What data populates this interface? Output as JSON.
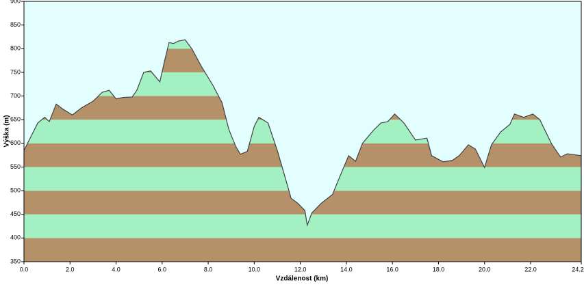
{
  "chart_data": {
    "type": "area",
    "xlabel": "Vzdálenost  (km)",
    "ylabel": "Výška (m)",
    "x": [
      0,
      0.3,
      0.6,
      0.9,
      1.1,
      1.4,
      1.7,
      2.1,
      2.5,
      3.0,
      3.4,
      3.7,
      4.0,
      4.3,
      4.7,
      4.9,
      5.2,
      5.5,
      5.9,
      6.1,
      6.3,
      6.5,
      6.7,
      7.0,
      7.3,
      7.7,
      8.2,
      8.6,
      8.9,
      9.2,
      9.4,
      9.7,
      10.0,
      10.2,
      10.6,
      11.0,
      11.3,
      11.6,
      11.9,
      12.2,
      12.3,
      12.5,
      12.9,
      13.4,
      13.7,
      14.1,
      14.4,
      14.7,
      15.2,
      15.5,
      15.8,
      16.1,
      16.5,
      17.0,
      17.5,
      17.7,
      18.2,
      18.6,
      18.9,
      19.3,
      19.6,
      20.0,
      20.3,
      20.7,
      21.1,
      21.3,
      21.7,
      22.1,
      22.4,
      22.9,
      23.3,
      23.6,
      24.2
    ],
    "values": [
      585,
      614,
      643,
      655,
      646,
      683,
      672,
      660,
      675,
      689,
      708,
      712,
      694,
      697,
      698,
      712,
      750,
      753,
      730,
      773,
      813,
      811,
      816,
      819,
      799,
      763,
      723,
      686,
      629,
      593,
      577,
      583,
      636,
      655,
      643,
      585,
      535,
      484,
      473,
      458,
      427,
      453,
      473,
      492,
      528,
      574,
      562,
      600,
      629,
      643,
      646,
      662,
      643,
      607,
      611,
      574,
      561,
      564,
      574,
      597,
      588,
      549,
      597,
      624,
      640,
      662,
      655,
      662,
      650,
      600,
      571,
      578,
      574
    ],
    "band_colors": [
      "#b5916a",
      "#a3f0c3"
    ],
    "line_color": "#404040",
    "background": "#e2fefe",
    "xlim": [
      0,
      24.2
    ],
    "ylim": [
      350,
      900
    ],
    "xticks": [
      {
        "value": 0,
        "label": "0.0"
      },
      {
        "value": 2,
        "label": "2.0"
      },
      {
        "value": 4,
        "label": "4.0"
      },
      {
        "value": 6,
        "label": "6.0"
      },
      {
        "value": 8,
        "label": "8.0"
      },
      {
        "value": 10,
        "label": "10.0"
      },
      {
        "value": 12,
        "label": "12.0"
      },
      {
        "value": 14,
        "label": "14.0"
      },
      {
        "value": 16,
        "label": "16.0"
      },
      {
        "value": 18,
        "label": "18.0"
      },
      {
        "value": 20,
        "label": "20.0"
      },
      {
        "value": 22,
        "label": "22.0"
      },
      24.2
    ],
    "yticks": [
      350,
      400,
      450,
      500,
      550,
      600,
      650,
      700,
      750,
      800,
      850,
      900
    ]
  }
}
